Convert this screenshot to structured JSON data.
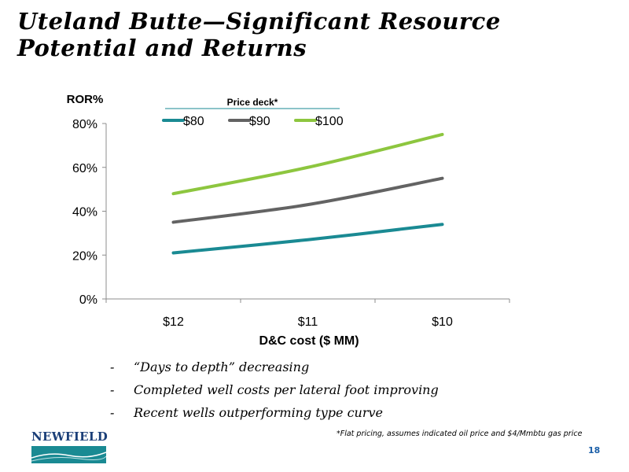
{
  "slide": {
    "title": "Uteland Butte—Significant Resource Potential and Returns",
    "bullets": [
      "“Days to depth” decreasing",
      "Completed well costs per lateral foot improving",
      "Recent wells outperforming type curve"
    ],
    "bullet_marker": "-",
    "footnote": "*Flat pricing, assumes indicated oil price and $4/Mmbtu gas price",
    "logo_text": "NEWFIELD",
    "page_number": "18"
  },
  "chart_data": {
    "type": "line",
    "ylabel": "ROR%",
    "xlabel": "D&C cost ($ MM)",
    "legend_title": "Price deck*",
    "legend_position": "top",
    "categories": [
      "$12",
      "$11",
      "$10"
    ],
    "y_ticks": [
      "0%",
      "20%",
      "40%",
      "60%",
      "80%"
    ],
    "ylim": [
      0,
      80
    ],
    "grid": false,
    "series": [
      {
        "name": "$80",
        "color": "#1a8a93",
        "values": [
          21,
          27,
          34
        ]
      },
      {
        "name": "$90",
        "color": "#636363",
        "values": [
          35,
          43,
          55
        ]
      },
      {
        "name": "$100",
        "color": "#8dc63f",
        "values": [
          48,
          60,
          75
        ]
      }
    ]
  }
}
